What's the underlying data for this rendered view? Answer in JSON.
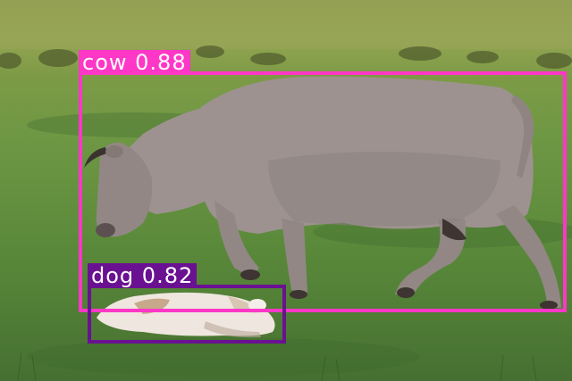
{
  "detections": [
    {
      "class": "cow",
      "confidence": "0.88",
      "color": "#ff37c7"
    },
    {
      "class": "dog",
      "confidence": "0.82",
      "color": "#6a1191"
    }
  ]
}
